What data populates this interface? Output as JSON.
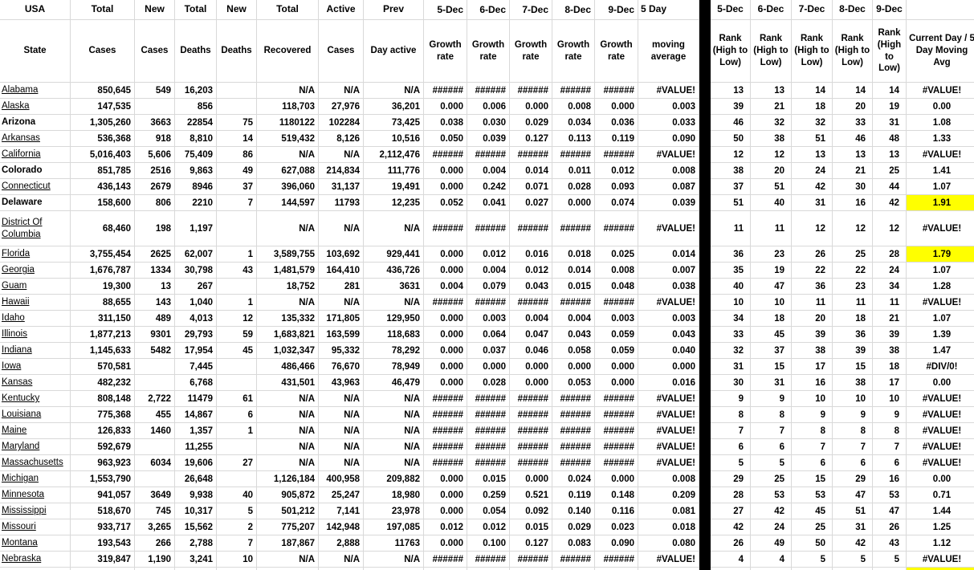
{
  "colors": {
    "gridline": "#d9d9d9",
    "error_indicator_green": "#1e7e1e",
    "highlight_yellow": "#ffff00",
    "divider_black": "#000000",
    "text": "#000000"
  },
  "sheet": {
    "header_row1": [
      "USA",
      "Total",
      "New",
      "Total",
      "New",
      "Total",
      "Active",
      "Prev",
      "5-Dec",
      "6-Dec",
      "7-Dec",
      "8-Dec",
      "9-Dec",
      "5 Day",
      "",
      "5-Dec",
      "6-Dec",
      "7-Dec",
      "8-Dec",
      "9-Dec",
      ""
    ],
    "header_row2": [
      "State",
      "Cases",
      "Cases",
      "Deaths",
      "Deaths",
      "Recovered",
      "Cases",
      "Day active",
      "Growth rate",
      "Growth rate",
      "Growth rate",
      "Growth rate",
      "Growth rate",
      "moving average",
      "",
      "Rank (High to Low)",
      "Rank (High to Low)",
      "Rank (High to Low)",
      "Rank (High to Low)",
      "Rank (High to Low)",
      "Current Day / 5 Day Moving Avg"
    ],
    "rows": [
      {
        "state": "Alabama",
        "values": [
          "850,645",
          "549",
          "16,203",
          "",
          "N/A",
          "N/A",
          "N/A"
        ],
        "growth": [
          "######",
          "######",
          "######",
          "######",
          "######"
        ],
        "moving_avg": "#VALUE!",
        "ranks": [
          "13",
          "13",
          "14",
          "14",
          "14"
        ],
        "ratio": "#VALUE!",
        "ratio_error": true
      },
      {
        "state": "Alaska",
        "values": [
          "147,535",
          "",
          "856",
          "",
          "118,703",
          "27,976",
          "36,201"
        ],
        "growth": [
          "0.000",
          "0.006",
          "0.000",
          "0.008",
          "0.000"
        ],
        "moving_avg": "0.003",
        "ranks": [
          "39",
          "21",
          "18",
          "20",
          "19"
        ],
        "ratio": "0.00"
      },
      {
        "state": "Arizona",
        "bold": true,
        "values": [
          "1,305,260",
          "3663",
          "22854",
          "75",
          "1180122",
          "102284",
          "73,425"
        ],
        "growth": [
          "0.038",
          "0.030",
          "0.029",
          "0.034",
          "0.036"
        ],
        "moving_avg": "0.033",
        "ranks": [
          "46",
          "32",
          "32",
          "33",
          "31"
        ],
        "ratio": "1.08"
      },
      {
        "state": "Arkansas",
        "values": [
          "536,368",
          "918",
          "8,810",
          "14",
          "519,432",
          "8,126",
          "10,516"
        ],
        "growth": [
          "0.050",
          "0.039",
          "0.127",
          "0.113",
          "0.119"
        ],
        "moving_avg": "0.090",
        "ranks": [
          "50",
          "38",
          "51",
          "46",
          "48"
        ],
        "ratio": "1.33"
      },
      {
        "state": "California",
        "values": [
          "5,016,403",
          "5,606",
          "75,409",
          "86",
          "N/A",
          "N/A",
          "2,112,476"
        ],
        "growth": [
          "######",
          "######",
          "######",
          "######",
          "######"
        ],
        "moving_avg": "#VALUE!",
        "ranks": [
          "12",
          "12",
          "13",
          "13",
          "13"
        ],
        "ratio": "#VALUE!",
        "ratio_error": true
      },
      {
        "state": "Colorado",
        "bold": true,
        "values": [
          "851,785",
          "2516",
          "9,863",
          "49",
          "627,088",
          "214,834",
          "111,776"
        ],
        "growth": [
          "0.000",
          "0.004",
          "0.014",
          "0.011",
          "0.012"
        ],
        "moving_avg": "0.008",
        "ranks": [
          "38",
          "20",
          "24",
          "21",
          "25"
        ],
        "ratio": "1.41"
      },
      {
        "state": "Connecticut",
        "values": [
          "436,143",
          "2679",
          "8946",
          "37",
          "396,060",
          "31,137",
          "19,491"
        ],
        "growth": [
          "0.000",
          "0.242",
          "0.071",
          "0.028",
          "0.093"
        ],
        "moving_avg": "0.087",
        "ranks": [
          "37",
          "51",
          "42",
          "30",
          "44"
        ],
        "ratio": "1.07"
      },
      {
        "state": "Delaware",
        "bold": true,
        "values": [
          "158,600",
          "806",
          "2210",
          "7",
          "144,597",
          "11793",
          "12,235"
        ],
        "growth": [
          "0.052",
          "0.041",
          "0.027",
          "0.000",
          "0.074"
        ],
        "moving_avg": "0.039",
        "ranks": [
          "51",
          "40",
          "31",
          "16",
          "42"
        ],
        "ratio": "1.91",
        "ratio_highlight": true
      },
      {
        "state": "District Of Columbia",
        "values": [
          "68,460",
          "198",
          "1,197",
          "",
          "N/A",
          "N/A",
          "N/A"
        ],
        "growth": [
          "######",
          "######",
          "######",
          "######",
          "######"
        ],
        "moving_avg": "#VALUE!",
        "ranks": [
          "11",
          "11",
          "12",
          "12",
          "12"
        ],
        "ratio": "#VALUE!",
        "ratio_error": true
      },
      {
        "state": "Florida",
        "values": [
          "3,755,454",
          "2625",
          "62,007",
          "1",
          "3,589,755",
          "103,692",
          "929,441"
        ],
        "growth": [
          "0.000",
          "0.012",
          "0.016",
          "0.018",
          "0.025"
        ],
        "moving_avg": "0.014",
        "ranks": [
          "36",
          "23",
          "26",
          "25",
          "28"
        ],
        "ratio": "1.79",
        "ratio_highlight": true
      },
      {
        "state": "Georgia",
        "values": [
          "1,676,787",
          "1334",
          "30,798",
          "43",
          "1,481,579",
          "164,410",
          "436,726"
        ],
        "growth": [
          "0.000",
          "0.004",
          "0.012",
          "0.014",
          "0.008"
        ],
        "moving_avg": "0.007",
        "ranks": [
          "35",
          "19",
          "22",
          "22",
          "24"
        ],
        "ratio": "1.07"
      },
      {
        "state": "Guam",
        "values": [
          "19,300",
          "13",
          "267",
          "",
          "18,752",
          "281",
          "3631"
        ],
        "growth": [
          "0.004",
          "0.079",
          "0.043",
          "0.015",
          "0.048"
        ],
        "moving_avg": "0.038",
        "ranks": [
          "40",
          "47",
          "36",
          "23",
          "34"
        ],
        "ratio": "1.28"
      },
      {
        "state": "Hawaii",
        "values": [
          "88,655",
          "143",
          "1,040",
          "1",
          "N/A",
          "N/A",
          "N/A"
        ],
        "growth": [
          "######",
          "######",
          "######",
          "######",
          "######"
        ],
        "moving_avg": "#VALUE!",
        "ranks": [
          "10",
          "10",
          "11",
          "11",
          "11"
        ],
        "ratio": "#VALUE!",
        "ratio_error": true
      },
      {
        "state": "Idaho",
        "values": [
          "311,150",
          "489",
          "4,013",
          "12",
          "135,332",
          "171,805",
          "129,950"
        ],
        "growth": [
          "0.000",
          "0.003",
          "0.004",
          "0.004",
          "0.003"
        ],
        "moving_avg": "0.003",
        "ranks": [
          "34",
          "18",
          "20",
          "18",
          "21"
        ],
        "ratio": "1.07"
      },
      {
        "state": "Illinois",
        "values": [
          "1,877,213",
          "9301",
          "29,793",
          "59",
          "1,683,821",
          "163,599",
          "118,683"
        ],
        "growth": [
          "0.000",
          "0.064",
          "0.047",
          "0.043",
          "0.059"
        ],
        "moving_avg": "0.043",
        "ranks": [
          "33",
          "45",
          "39",
          "36",
          "39"
        ],
        "ratio": "1.39"
      },
      {
        "state": "Indiana",
        "values": [
          "1,145,633",
          "5482",
          "17,954",
          "45",
          "1,032,347",
          "95,332",
          "78,292"
        ],
        "growth": [
          "0.000",
          "0.037",
          "0.046",
          "0.058",
          "0.059"
        ],
        "moving_avg": "0.040",
        "ranks": [
          "32",
          "37",
          "38",
          "39",
          "38"
        ],
        "ratio": "1.47"
      },
      {
        "state": "Iowa",
        "values": [
          "570,581",
          "",
          "7,445",
          "",
          "486,466",
          "76,670",
          "78,949"
        ],
        "growth": [
          "0.000",
          "0.000",
          "0.000",
          "0.000",
          "0.000"
        ],
        "moving_avg": "0.000",
        "ranks": [
          "31",
          "15",
          "17",
          "15",
          "18"
        ],
        "ratio": "#DIV/0!",
        "ratio_error": true
      },
      {
        "state": "Kansas",
        "values": [
          "482,232",
          "",
          "6,768",
          "",
          "431,501",
          "43,963",
          "46,479"
        ],
        "growth": [
          "0.000",
          "0.028",
          "0.000",
          "0.053",
          "0.000"
        ],
        "moving_avg": "0.016",
        "ranks": [
          "30",
          "31",
          "16",
          "38",
          "17"
        ],
        "ratio": "0.00"
      },
      {
        "state": "Kentucky",
        "values": [
          "808,148",
          "2,722",
          "11479",
          "61",
          "N/A",
          "N/A",
          "N/A"
        ],
        "growth": [
          "######",
          "######",
          "######",
          "######",
          "######"
        ],
        "moving_avg": "#VALUE!",
        "ranks": [
          "9",
          "9",
          "10",
          "10",
          "10"
        ],
        "ratio": "#VALUE!",
        "ratio_error": true
      },
      {
        "state": "Louisiana",
        "values": [
          "775,368",
          "455",
          "14,867",
          "6",
          "N/A",
          "N/A",
          "N/A"
        ],
        "growth": [
          "######",
          "######",
          "######",
          "######",
          "######"
        ],
        "moving_avg": "#VALUE!",
        "ranks": [
          "8",
          "8",
          "9",
          "9",
          "9"
        ],
        "ratio": "#VALUE!",
        "ratio_error": true
      },
      {
        "state": "Maine",
        "values": [
          "126,833",
          "1460",
          "1,357",
          "1",
          "N/A",
          "N/A",
          "N/A"
        ],
        "growth": [
          "######",
          "######",
          "######",
          "######",
          "######"
        ],
        "moving_avg": "#VALUE!",
        "ranks": [
          "7",
          "7",
          "8",
          "8",
          "8"
        ],
        "ratio": "#VALUE!",
        "ratio_error": true
      },
      {
        "state": "Maryland",
        "values": [
          "592,679",
          "",
          "11,255",
          "",
          "N/A",
          "N/A",
          "N/A"
        ],
        "growth": [
          "######",
          "######",
          "######",
          "######",
          "######"
        ],
        "moving_avg": "#VALUE!",
        "ranks": [
          "6",
          "6",
          "7",
          "7",
          "7"
        ],
        "ratio": "#VALUE!",
        "ratio_error": true
      },
      {
        "state": "Massachusetts",
        "values": [
          "963,923",
          "6034",
          "19,606",
          "27",
          "N/A",
          "N/A",
          "N/A"
        ],
        "growth": [
          "######",
          "######",
          "######",
          "######",
          "######"
        ],
        "moving_avg": "#VALUE!",
        "ranks": [
          "5",
          "5",
          "6",
          "6",
          "6"
        ],
        "ratio": "#VALUE!",
        "ratio_error": true
      },
      {
        "state": "Michigan",
        "values": [
          "1,553,790",
          "",
          "26,648",
          "",
          "1,126,184",
          "400,958",
          "209,882"
        ],
        "growth": [
          "0.000",
          "0.015",
          "0.000",
          "0.024",
          "0.000"
        ],
        "moving_avg": "0.008",
        "ranks": [
          "29",
          "25",
          "15",
          "29",
          "16"
        ],
        "ratio": "0.00"
      },
      {
        "state": "Minnesota",
        "values": [
          "941,057",
          "3649",
          "9,938",
          "40",
          "905,872",
          "25,247",
          "18,980"
        ],
        "growth": [
          "0.000",
          "0.259",
          "0.521",
          "0.119",
          "0.148"
        ],
        "moving_avg": "0.209",
        "ranks": [
          "28",
          "53",
          "53",
          "47",
          "53"
        ],
        "ratio": "0.71"
      },
      {
        "state": "Mississippi",
        "values": [
          "518,670",
          "745",
          "10,317",
          "5",
          "501,212",
          "7,141",
          "23,978"
        ],
        "growth": [
          "0.000",
          "0.054",
          "0.092",
          "0.140",
          "0.116"
        ],
        "moving_avg": "0.081",
        "ranks": [
          "27",
          "42",
          "45",
          "51",
          "47"
        ],
        "ratio": "1.44"
      },
      {
        "state": "Missouri",
        "values": [
          "933,717",
          "3,265",
          "15,562",
          "2",
          "775,207",
          "142,948",
          "197,085"
        ],
        "growth": [
          "0.012",
          "0.012",
          "0.015",
          "0.029",
          "0.023"
        ],
        "moving_avg": "0.018",
        "ranks": [
          "42",
          "24",
          "25",
          "31",
          "26"
        ],
        "ratio": "1.25"
      },
      {
        "state": "Montana",
        "values": [
          "193,543",
          "266",
          "2,788",
          "7",
          "187,867",
          "2,888",
          "11763"
        ],
        "growth": [
          "0.000",
          "0.100",
          "0.127",
          "0.083",
          "0.090"
        ],
        "moving_avg": "0.080",
        "ranks": [
          "26",
          "49",
          "50",
          "42",
          "43"
        ],
        "ratio": "1.12"
      },
      {
        "state": "Nebraska",
        "values": [
          "319,847",
          "1,190",
          "3,241",
          "10",
          "N/A",
          "N/A",
          "N/A"
        ],
        "growth": [
          "######",
          "######",
          "######",
          "######",
          "######"
        ],
        "moving_avg": "#VALUE!",
        "ranks": [
          "4",
          "4",
          "5",
          "5",
          "5"
        ],
        "ratio": "#VALUE!",
        "ratio_error": true
      }
    ],
    "partial_next_row": {
      "ratio_cell_highlight": true
    }
  }
}
